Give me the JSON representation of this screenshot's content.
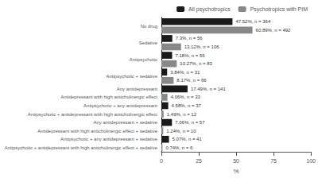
{
  "chart_data": {
    "type": "bar",
    "orientation": "horizontal",
    "categories": [
      "No drug",
      "Sedative",
      "Antipsychotic",
      "Antipsychotic + sedative",
      [
        "Any antidepressant",
        "Antidepressant with high anticholinergic effect"
      ],
      [
        "Antipsychotic + any antidepressant",
        "Antipsychotic + antidepressant with high anticholinergic effect"
      ],
      [
        "Any antidepressant + sedative",
        "Antidepressant with high anticholinergic effect + sedative"
      ],
      [
        "Antipsychotic + any antidepressant + sedative",
        "Antipsychotic + antidepressant with high anticholinergic effect + sedative"
      ]
    ],
    "series": [
      {
        "name": "All psychotropics",
        "color": "#1a1a1a",
        "values": [
          47.52,
          7.3,
          7.18,
          3.84,
          17.49,
          4.58,
          7.06,
          5.07
        ],
        "value_labels": [
          "47.52%, n = 364",
          "7.3%, n = 56",
          "7.18%, n = 55",
          "3.84%, n = 31",
          "17.49%, n = 141",
          "4.58%, n = 37",
          "7.06%, n = 57",
          "5.07%, n = 41"
        ]
      },
      {
        "name": "Psychotropics with PIM",
        "color": "#888888",
        "values": [
          60.89,
          13.12,
          10.27,
          8.17,
          4.06,
          1.49,
          1.24,
          0.74
        ],
        "value_labels": [
          "60.89%, n = 492",
          "13.12%, n = 106",
          "10.27%, n = 83",
          "8.17%, n = 66",
          "4.06%, n = 33",
          "1.49%, n = 12",
          "1.24%, n = 10",
          "0.74%, n = 6"
        ]
      }
    ],
    "xlabel": "%",
    "xlim": [
      0,
      100
    ],
    "xticks": [
      0,
      25,
      50,
      75,
      100
    ],
    "legend": "upper right",
    "data_labels": true,
    "grid": false
  }
}
